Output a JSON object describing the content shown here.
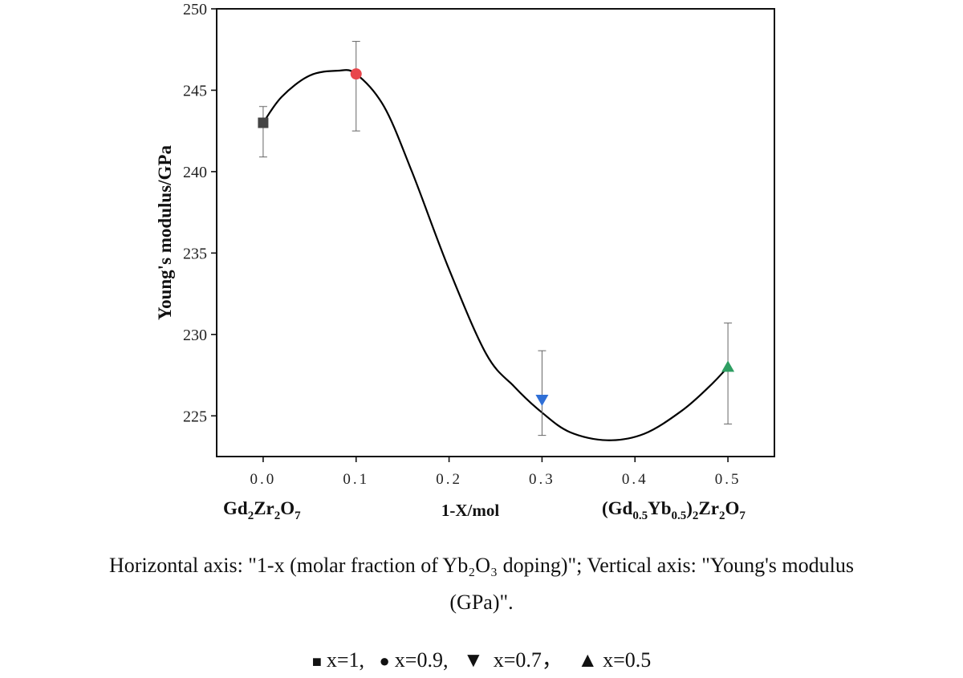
{
  "chart_data": {
    "type": "scatter",
    "title": "",
    "xlabel": "1-X/mol",
    "ylabel": "Young's modulus/GPa",
    "xlim": [
      -0.05,
      0.55
    ],
    "ylim": [
      222.5,
      250
    ],
    "x_ticks": [
      "0.0",
      "0.1",
      "0.2",
      "0.3",
      "0.4",
      "0.5"
    ],
    "y_ticks": [
      "225",
      "230",
      "235",
      "240",
      "245",
      "250"
    ],
    "grid": false,
    "points": [
      {
        "x": 0.0,
        "y": 243.0,
        "err_low": 240.9,
        "err_high": 244.0,
        "marker": "square",
        "color": "#444444"
      },
      {
        "x": 0.1,
        "y": 246.0,
        "err_low": 242.5,
        "err_high": 248.0,
        "marker": "circle",
        "color": "#e8474c"
      },
      {
        "x": 0.3,
        "y": 226.0,
        "err_low": 223.8,
        "err_high": 229.0,
        "marker": "triangle-down",
        "color": "#2f6fd6"
      },
      {
        "x": 0.5,
        "y": 228.0,
        "err_low": 224.5,
        "err_high": 230.7,
        "marker": "triangle-up",
        "color": "#2e9e62"
      }
    ],
    "curve": {
      "x": [
        0.0,
        0.02,
        0.05,
        0.08,
        0.1,
        0.13,
        0.16,
        0.2,
        0.24,
        0.27,
        0.3,
        0.33,
        0.37,
        0.41,
        0.45,
        0.48,
        0.5
      ],
      "y": [
        243.0,
        244.6,
        245.9,
        246.2,
        246.0,
        244.0,
        240.0,
        234.0,
        228.8,
        226.8,
        225.2,
        224.0,
        223.5,
        223.9,
        225.3,
        226.8,
        228.0
      ]
    },
    "composition_labels": {
      "left": {
        "base": "Gd",
        "s1": "2",
        "mid": "Zr",
        "s2": "2",
        "end": "O",
        "s3": "7"
      },
      "right": {
        "p1": "(Gd",
        "s1": "0.5",
        "p2": "Yb",
        "s2": "0.5",
        "p3": ")",
        "s3": "2",
        "p4": "Zr",
        "s4": "2",
        "p5": "O",
        "s5": "7"
      }
    }
  },
  "caption": {
    "line1": "Horizontal axis: \"1-x (molar fraction of Yb₂O₃ doping)\"; Vertical axis: \"Young's modulus",
    "line2": "(GPa)\"."
  },
  "legend": [
    {
      "symbol": "■",
      "label": "x=1,"
    },
    {
      "symbol": "●",
      "label": "x=0.9,"
    },
    {
      "symbol": "▼",
      "label": "x=0.7，"
    },
    {
      "symbol": "▲",
      "label": "x=0.5"
    }
  ]
}
